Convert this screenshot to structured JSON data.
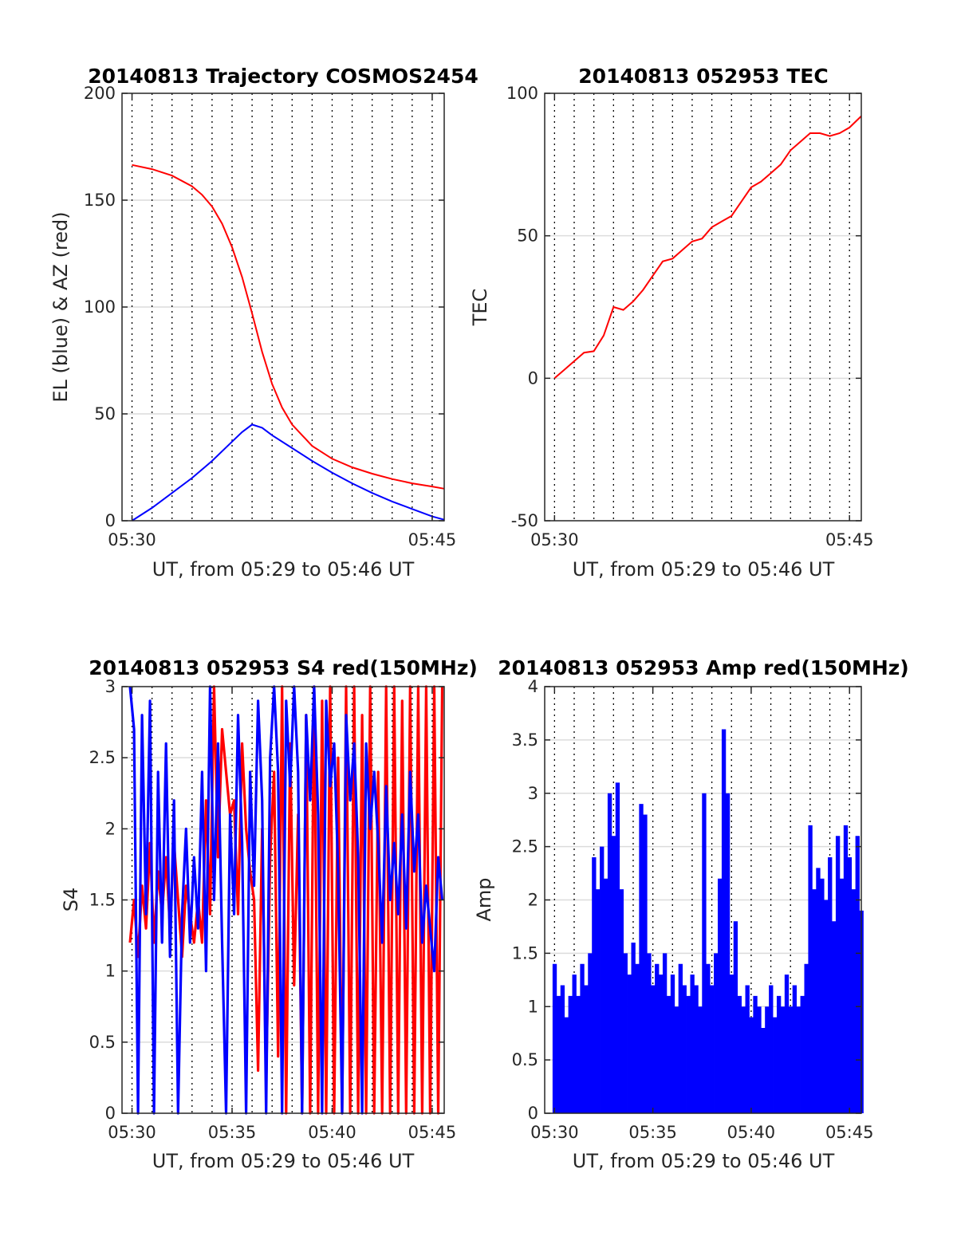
{
  "chart_data": [
    {
      "type": "line",
      "title": "20140813 Trajectory COSMOS2454",
      "xlabel": "UT, from 05:29 to 05:46 UT",
      "ylabel": "EL (blue) & AZ (red)",
      "xlim": [
        29.5,
        45.6
      ],
      "ylim": [
        0,
        200
      ],
      "xticks": [
        30,
        45
      ],
      "xtick_labels": [
        "05:30",
        "05:45"
      ],
      "yticks": [
        0,
        50,
        100,
        150,
        200
      ],
      "ytick_labels": [
        "0",
        "50",
        "100",
        "150",
        "200"
      ],
      "grid": true,
      "colors": {
        "EL": "#0000ff",
        "AZ": "#ff0000"
      },
      "series": [
        {
          "color": "#ff0000",
          "x": [
            30.0,
            31.0,
            32.0,
            33.0,
            33.5,
            34.0,
            34.5,
            35.0,
            35.5,
            36.0,
            36.5,
            37.0,
            37.5,
            38.0,
            39.0,
            40.0,
            41.0,
            42.0,
            43.0,
            44.0,
            45.0,
            45.6
          ],
          "y": [
            166.5,
            164.5,
            161.5,
            156.5,
            152.5,
            147,
            139,
            128,
            114,
            97,
            79,
            64,
            53,
            45,
            35,
            29,
            25,
            22,
            19.5,
            17.5,
            16,
            15
          ]
        },
        {
          "color": "#0000ff",
          "x": [
            30.0,
            31.0,
            32.0,
            33.0,
            34.0,
            35.0,
            35.5,
            36.0,
            36.5,
            37.0,
            38.0,
            39.0,
            40.0,
            41.0,
            42.0,
            43.0,
            44.0,
            45.0,
            45.6
          ],
          "y": [
            0,
            6,
            13,
            20,
            28,
            37,
            41.5,
            45,
            43.5,
            40,
            34,
            28,
            22.5,
            17.5,
            13,
            9,
            5.5,
            2,
            0.5
          ]
        }
      ]
    },
    {
      "type": "line",
      "title": "20140813 052953 TEC",
      "xlabel": "UT, from 05:29 to 05:46 UT",
      "ylabel": "TEC",
      "xlim": [
        29.5,
        45.6
      ],
      "ylim": [
        -50,
        100
      ],
      "xticks": [
        30,
        45
      ],
      "xtick_labels": [
        "05:30",
        "05:45"
      ],
      "yticks": [
        -50,
        0,
        50,
        100
      ],
      "ytick_labels": [
        "-50",
        "0",
        "50",
        "100"
      ],
      "grid": true,
      "series": [
        {
          "color": "#ff0000",
          "x": [
            30.0,
            30.5,
            31.0,
            31.5,
            32.0,
            32.5,
            33.0,
            33.5,
            34.0,
            34.5,
            35.0,
            35.5,
            36.0,
            36.5,
            37.0,
            37.5,
            38.0,
            38.5,
            39.0,
            39.5,
            40.0,
            40.5,
            41.0,
            41.5,
            42.0,
            42.5,
            43.0,
            43.5,
            44.0,
            44.5,
            45.0,
            45.6
          ],
          "y": [
            0,
            3,
            6,
            9,
            9.5,
            15,
            25,
            24,
            27,
            31,
            36,
            41,
            42,
            45,
            48,
            49,
            53,
            55,
            57,
            62,
            67,
            69,
            72,
            75,
            80,
            83,
            86,
            86,
            85,
            86,
            88,
            92
          ]
        }
      ]
    },
    {
      "type": "line",
      "title": "20140813 052953 S4 red(150MHz)",
      "xlabel": "UT, from 05:29 to 05:46 UT",
      "ylabel": "S4",
      "xlim": [
        29.5,
        45.6
      ],
      "ylim": [
        0,
        3
      ],
      "xticks": [
        30,
        35,
        40,
        45
      ],
      "xtick_labels": [
        "05:30",
        "05:35",
        "05:40",
        "05:45"
      ],
      "yticks": [
        0,
        0.5,
        1,
        1.5,
        2,
        2.5,
        3
      ],
      "ytick_labels": [
        "0",
        "0.5",
        "1",
        "1.5",
        "2",
        "2.5",
        "3"
      ],
      "grid": true,
      "series": [
        {
          "color": "#ff0000",
          "x": [
            29.9,
            30.1,
            30.3,
            30.5,
            30.7,
            30.9,
            31.1,
            31.3,
            31.5,
            31.7,
            31.9,
            32.1,
            32.3,
            32.5,
            32.7,
            32.9,
            33.1,
            33.3,
            33.5,
            33.7,
            33.9,
            34.1,
            34.3,
            34.5,
            34.7,
            34.9,
            35.1,
            35.3,
            35.5,
            35.7,
            35.9,
            36.1,
            36.3,
            36.5,
            36.7,
            36.9,
            37.1,
            37.3,
            37.5,
            37.7,
            37.9,
            38.1,
            38.3,
            38.5,
            38.7,
            38.9,
            39.1,
            39.3,
            39.5,
            39.7,
            39.9,
            40.1,
            40.3,
            40.5,
            40.7,
            40.9,
            41.1,
            41.3,
            41.5,
            41.7,
            41.9,
            42.1,
            42.3,
            42.5,
            42.7,
            42.9,
            43.1,
            43.3,
            43.5,
            43.7,
            43.9,
            44.1,
            44.3,
            44.5,
            44.7,
            44.9,
            45.1,
            45.3,
            45.5
          ],
          "y": [
            1.2,
            1.5,
            1.1,
            1.6,
            1.3,
            1.9,
            1.2,
            1.7,
            1.4,
            1.8,
            1.3,
            1.9,
            1.5,
            1.1,
            1.6,
            1.4,
            1.2,
            1.5,
            1.2,
            2.2,
            1.4,
            3.0,
            1.8,
            2.7,
            2.4,
            2.1,
            2.2,
            1.4,
            2.6,
            2.0,
            1.7,
            1.5,
            0.3,
            2.0,
            0.2,
            1.8,
            2.4,
            0.4,
            3.0,
            0.0,
            2.6,
            0.9,
            2.1,
            0.0,
            2.8,
            0.0,
            3.0,
            0.0,
            2.9,
            0.0,
            3.0,
            0.0,
            2.5,
            0.0,
            3.0,
            0.0,
            3.0,
            0.0,
            2.8,
            0.0,
            3.0,
            0.0,
            2.4,
            0.0,
            3.0,
            0.0,
            3.0,
            0.0,
            2.9,
            0.0,
            3.0,
            0.0,
            3.0,
            0.0,
            3.0,
            0.0,
            3.0,
            0.0,
            3.0
          ]
        },
        {
          "color": "#0000ff",
          "x": [
            29.9,
            30.1,
            30.3,
            30.5,
            30.7,
            30.9,
            31.1,
            31.3,
            31.5,
            31.7,
            31.9,
            32.1,
            32.3,
            32.5,
            32.7,
            32.9,
            33.1,
            33.3,
            33.5,
            33.7,
            33.9,
            34.1,
            34.3,
            34.5,
            34.7,
            34.9,
            35.1,
            35.3,
            35.5,
            35.7,
            35.9,
            36.1,
            36.3,
            36.5,
            36.7,
            36.9,
            37.1,
            37.3,
            37.5,
            37.7,
            37.9,
            38.1,
            38.3,
            38.5,
            38.7,
            38.9,
            39.1,
            39.3,
            39.5,
            39.7,
            39.9,
            40.1,
            40.3,
            40.5,
            40.7,
            40.9,
            41.1,
            41.3,
            41.5,
            41.7,
            41.9,
            42.1,
            42.3,
            42.5,
            42.7,
            42.9,
            43.1,
            43.3,
            43.5,
            43.7,
            43.9,
            44.1,
            44.3,
            44.5,
            44.7,
            44.9,
            45.1,
            45.3,
            45.5
          ],
          "y": [
            3.0,
            2.7,
            0.0,
            2.8,
            1.4,
            2.9,
            0.0,
            2.4,
            1.2,
            2.6,
            1.1,
            2.2,
            0.0,
            1.4,
            2.0,
            1.2,
            1.8,
            1.3,
            2.4,
            1.0,
            3.0,
            1.5,
            2.6,
            1.2,
            0.0,
            2.1,
            1.4,
            2.8,
            1.9,
            0.0,
            2.4,
            1.6,
            2.9,
            2.2,
            0.0,
            2.5,
            3.0,
            2.4,
            0.0,
            2.9,
            2.3,
            3.0,
            2.4,
            0.0,
            2.8,
            2.2,
            3.0,
            2.1,
            0.0,
            2.9,
            2.3,
            2.6,
            1.7,
            0.0,
            2.8,
            2.2,
            2.6,
            1.8,
            0.0,
            2.6,
            2.0,
            2.4,
            1.9,
            1.2,
            2.3,
            1.5,
            1.9,
            1.4,
            2.1,
            1.3,
            2.4,
            1.7,
            2.1,
            1.2,
            1.6,
            1.3,
            1.0,
            1.8,
            1.5
          ]
        }
      ]
    },
    {
      "type": "bar",
      "title": "20140813 052953 Amp red(150MHz)",
      "xlabel": "UT, from 05:29 to 05:46 UT",
      "ylabel": "Amp",
      "xlim": [
        29.5,
        45.6
      ],
      "ylim": [
        0,
        4
      ],
      "xticks": [
        30,
        35,
        40,
        45
      ],
      "xtick_labels": [
        "05:30",
        "05:35",
        "05:40",
        "05:45"
      ],
      "yticks": [
        0,
        0.5,
        1,
        1.5,
        2,
        2.5,
        3,
        3.5,
        4
      ],
      "ytick_labels": [
        "0",
        "0.5",
        "1",
        "1.5",
        "2",
        "2.5",
        "3",
        "3.5",
        "4"
      ],
      "grid": true,
      "series": [
        {
          "color": "#0000ff",
          "x": [
            30.0,
            30.2,
            30.4,
            30.6,
            30.8,
            31.0,
            31.2,
            31.4,
            31.6,
            31.8,
            32.0,
            32.2,
            32.4,
            32.6,
            32.8,
            33.0,
            33.2,
            33.4,
            33.6,
            33.8,
            34.0,
            34.2,
            34.4,
            34.6,
            34.8,
            35.0,
            35.2,
            35.4,
            35.6,
            35.8,
            36.0,
            36.2,
            36.4,
            36.6,
            36.8,
            37.0,
            37.2,
            37.4,
            37.6,
            37.8,
            38.0,
            38.2,
            38.4,
            38.6,
            38.8,
            39.0,
            39.2,
            39.4,
            39.6,
            39.8,
            40.0,
            40.2,
            40.4,
            40.6,
            40.8,
            41.0,
            41.2,
            41.4,
            41.6,
            41.8,
            42.0,
            42.2,
            42.4,
            42.6,
            42.8,
            43.0,
            43.2,
            43.4,
            43.6,
            43.8,
            44.0,
            44.2,
            44.4,
            44.6,
            44.8,
            45.0,
            45.2,
            45.4,
            45.6
          ],
          "y": [
            1.4,
            1.1,
            1.2,
            0.9,
            1.1,
            1.3,
            1.1,
            1.4,
            1.2,
            1.5,
            2.4,
            2.1,
            2.5,
            2.2,
            3.0,
            2.6,
            3.1,
            2.1,
            1.5,
            1.3,
            1.6,
            1.4,
            2.9,
            2.8,
            1.5,
            1.2,
            1.4,
            1.3,
            1.5,
            1.1,
            1.3,
            1.0,
            1.4,
            1.2,
            1.1,
            1.3,
            1.2,
            1.0,
            3.0,
            1.4,
            1.2,
            1.5,
            2.2,
            3.6,
            3.0,
            1.3,
            1.8,
            1.1,
            1.0,
            1.2,
            0.9,
            1.1,
            1.0,
            0.8,
            1.0,
            1.2,
            0.9,
            1.1,
            1.0,
            1.3,
            1.0,
            1.2,
            1.0,
            1.1,
            1.4,
            2.7,
            2.1,
            2.3,
            2.2,
            2.0,
            2.4,
            1.8,
            2.6,
            2.2,
            2.7,
            2.4,
            2.1,
            2.6,
            1.9
          ]
        }
      ]
    }
  ]
}
